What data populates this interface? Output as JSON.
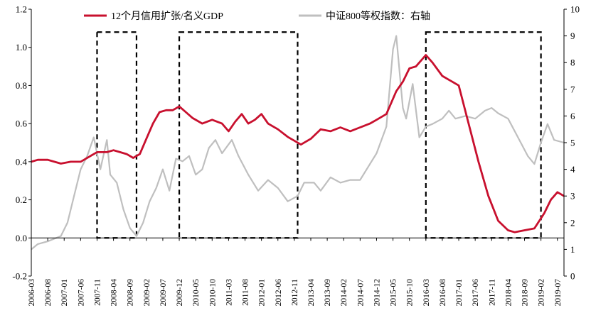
{
  "chart_data": {
    "type": "line",
    "title": "",
    "legend": {
      "placement": "top"
    },
    "grid": false,
    "colors": {
      "credit": "#c8102e",
      "index": "#bfbfbf",
      "box": "#000000"
    },
    "left_axis": {
      "ylim": [
        -0.2,
        1.2
      ],
      "ticks": [
        "1.2",
        "1.0",
        "0.8",
        "0.6",
        "0.4",
        "0.2",
        "0.0",
        "-0.2"
      ]
    },
    "right_axis": {
      "ylim": [
        0,
        10
      ],
      "ticks": [
        "10",
        "9",
        "8",
        "7",
        "6",
        "5",
        "4",
        "3",
        "2",
        "1",
        "0"
      ]
    },
    "x_ticks": [
      "2006-03",
      "2006-08",
      "2007-01",
      "2007-06",
      "2007-11",
      "2008-04",
      "2008-09",
      "2009-02",
      "2009-07",
      "2009-12",
      "2010-05",
      "2010-10",
      "2011-03",
      "2011-08",
      "2012-01",
      "2012-06",
      "2012-11",
      "2013-04",
      "2013-09",
      "2014-02",
      "2014-07",
      "2014-12",
      "2015-05",
      "2015-10",
      "2016-03",
      "2016-08",
      "2017-01",
      "2017-06",
      "2017-11",
      "2018-04",
      "2018-09",
      "2019-02",
      "2019-07"
    ],
    "series": [
      {
        "name": "12个月信用扩张/名义GDP",
        "axis": "left",
        "values": [
          [
            "2006-03",
            0.4
          ],
          [
            "2006-05",
            0.41
          ],
          [
            "2006-08",
            0.41
          ],
          [
            "2006-10",
            0.4
          ],
          [
            "2006-12",
            0.39
          ],
          [
            "2007-03",
            0.4
          ],
          [
            "2007-06",
            0.4
          ],
          [
            "2007-09",
            0.43
          ],
          [
            "2007-11",
            0.45
          ],
          [
            "2008-02",
            0.45
          ],
          [
            "2008-04",
            0.46
          ],
          [
            "2008-06",
            0.45
          ],
          [
            "2008-08",
            0.44
          ],
          [
            "2008-10",
            0.42
          ],
          [
            "2008-12",
            0.44
          ],
          [
            "2009-02",
            0.52
          ],
          [
            "2009-04",
            0.6
          ],
          [
            "2009-06",
            0.66
          ],
          [
            "2009-08",
            0.67
          ],
          [
            "2009-10",
            0.67
          ],
          [
            "2009-12",
            0.69
          ],
          [
            "2010-02",
            0.66
          ],
          [
            "2010-04",
            0.63
          ],
          [
            "2010-07",
            0.6
          ],
          [
            "2010-10",
            0.62
          ],
          [
            "2011-01",
            0.6
          ],
          [
            "2011-03",
            0.56
          ],
          [
            "2011-05",
            0.61
          ],
          [
            "2011-07",
            0.65
          ],
          [
            "2011-09",
            0.6
          ],
          [
            "2011-11",
            0.62
          ],
          [
            "2012-01",
            0.65
          ],
          [
            "2012-03",
            0.6
          ],
          [
            "2012-06",
            0.57
          ],
          [
            "2012-09",
            0.53
          ],
          [
            "2012-11",
            0.51
          ],
          [
            "2013-01",
            0.49
          ],
          [
            "2013-04",
            0.52
          ],
          [
            "2013-07",
            0.57
          ],
          [
            "2013-10",
            0.56
          ],
          [
            "2014-01",
            0.58
          ],
          [
            "2014-04",
            0.56
          ],
          [
            "2014-07",
            0.58
          ],
          [
            "2014-10",
            0.6
          ],
          [
            "2014-12",
            0.62
          ],
          [
            "2015-03",
            0.65
          ],
          [
            "2015-06",
            0.77
          ],
          [
            "2015-08",
            0.82
          ],
          [
            "2015-10",
            0.89
          ],
          [
            "2015-12",
            0.9
          ],
          [
            "2016-03",
            0.96
          ],
          [
            "2016-05",
            0.92
          ],
          [
            "2016-08",
            0.85
          ],
          [
            "2016-10",
            0.83
          ],
          [
            "2017-01",
            0.8
          ],
          [
            "2017-04",
            0.6
          ],
          [
            "2017-07",
            0.4
          ],
          [
            "2017-10",
            0.22
          ],
          [
            "2018-01",
            0.09
          ],
          [
            "2018-04",
            0.04
          ],
          [
            "2018-06",
            0.03
          ],
          [
            "2018-09",
            0.04
          ],
          [
            "2018-12",
            0.05
          ],
          [
            "2019-03",
            0.13
          ],
          [
            "2019-05",
            0.2
          ],
          [
            "2019-07",
            0.24
          ],
          [
            "2019-09",
            0.22
          ]
        ]
      },
      {
        "name": "中证800等权指数：右轴",
        "axis": "right",
        "values": [
          [
            "2006-03",
            1.0
          ],
          [
            "2006-05",
            1.2
          ],
          [
            "2006-08",
            1.3
          ],
          [
            "2006-10",
            1.4
          ],
          [
            "2006-12",
            1.5
          ],
          [
            "2007-02",
            2.0
          ],
          [
            "2007-04",
            3.0
          ],
          [
            "2007-06",
            4.0
          ],
          [
            "2007-08",
            4.5
          ],
          [
            "2007-10",
            5.2
          ],
          [
            "2007-12",
            4.0
          ],
          [
            "2008-02",
            5.1
          ],
          [
            "2008-03",
            3.8
          ],
          [
            "2008-05",
            3.5
          ],
          [
            "2008-07",
            2.5
          ],
          [
            "2008-09",
            1.8
          ],
          [
            "2008-11",
            1.5
          ],
          [
            "2009-01",
            2.0
          ],
          [
            "2009-03",
            2.8
          ],
          [
            "2009-05",
            3.3
          ],
          [
            "2009-07",
            4.0
          ],
          [
            "2009-09",
            3.2
          ],
          [
            "2009-11",
            4.4
          ],
          [
            "2010-01",
            4.3
          ],
          [
            "2010-03",
            4.5
          ],
          [
            "2010-05",
            3.8
          ],
          [
            "2010-07",
            4.0
          ],
          [
            "2010-09",
            4.8
          ],
          [
            "2010-11",
            5.1
          ],
          [
            "2011-01",
            4.6
          ],
          [
            "2011-04",
            5.1
          ],
          [
            "2011-06",
            4.5
          ],
          [
            "2011-09",
            3.8
          ],
          [
            "2011-12",
            3.2
          ],
          [
            "2012-03",
            3.6
          ],
          [
            "2012-06",
            3.3
          ],
          [
            "2012-09",
            2.8
          ],
          [
            "2012-12",
            3.0
          ],
          [
            "2013-02",
            3.5
          ],
          [
            "2013-05",
            3.5
          ],
          [
            "2013-07",
            3.2
          ],
          [
            "2013-10",
            3.7
          ],
          [
            "2014-01",
            3.5
          ],
          [
            "2014-04",
            3.6
          ],
          [
            "2014-07",
            3.6
          ],
          [
            "2014-10",
            4.2
          ],
          [
            "2014-12",
            4.6
          ],
          [
            "2015-03",
            5.6
          ],
          [
            "2015-05",
            8.5
          ],
          [
            "2015-06",
            9.0
          ],
          [
            "2015-08",
            6.3
          ],
          [
            "2015-09",
            5.9
          ],
          [
            "2015-11",
            7.2
          ],
          [
            "2016-01",
            5.2
          ],
          [
            "2016-03",
            5.6
          ],
          [
            "2016-05",
            5.7
          ],
          [
            "2016-08",
            5.9
          ],
          [
            "2016-10",
            6.2
          ],
          [
            "2016-12",
            5.9
          ],
          [
            "2017-03",
            6.0
          ],
          [
            "2017-06",
            5.9
          ],
          [
            "2017-09",
            6.2
          ],
          [
            "2017-11",
            6.3
          ],
          [
            "2018-01",
            6.1
          ],
          [
            "2018-04",
            5.9
          ],
          [
            "2018-07",
            5.2
          ],
          [
            "2018-10",
            4.5
          ],
          [
            "2018-12",
            4.2
          ],
          [
            "2019-02",
            5.0
          ],
          [
            "2019-04",
            5.7
          ],
          [
            "2019-06",
            5.1
          ],
          [
            "2019-09",
            5.0
          ]
        ]
      }
    ],
    "boxes": [
      {
        "from": "2007-11",
        "to": "2008-11",
        "ylim": [
          0.0,
          1.08
        ]
      },
      {
        "from": "2009-12",
        "to": "2012-12",
        "ylim": [
          0.0,
          1.08
        ]
      },
      {
        "from": "2016-03",
        "to": "2019-02",
        "ylim": [
          0.0,
          1.08
        ]
      }
    ]
  }
}
